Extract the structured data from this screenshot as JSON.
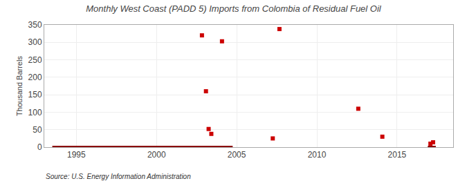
{
  "chart_data": {
    "type": "scatter",
    "title": "Monthly West Coast (PADD 5) Imports from Colombia of Residual Fuel Oil",
    "ylabel": "Thousand Barrels",
    "annotations": [
      "Source: U.S. Energy Information Administration"
    ],
    "xlim": [
      1993.0,
      2018.5
    ],
    "ylim": [
      0,
      350
    ],
    "xticks": [
      1995,
      2000,
      2005,
      2010,
      2015
    ],
    "yticks": [
      0,
      50,
      100,
      150,
      200,
      250,
      300,
      350
    ],
    "grid": true,
    "series": [
      {
        "type": "line",
        "color": "#8b0000",
        "x": [
          1993.5,
          2004.75
        ],
        "values": [
          0,
          0
        ]
      },
      {
        "type": "line",
        "color": "#8b0000",
        "x": [
          2016.917,
          2017.417
        ],
        "values": [
          0,
          0
        ]
      },
      {
        "type": "scatter",
        "marker": "square",
        "color": "#cc0000",
        "x": [
          2002.833,
          2003.083,
          2003.25,
          2003.417,
          2004.083,
          2007.25,
          2007.667,
          2012.583,
          2014.083,
          2017.083,
          2017.25
        ],
        "values": [
          320,
          160,
          52,
          38,
          303,
          25,
          338,
          110,
          30,
          10,
          14
        ]
      }
    ]
  }
}
